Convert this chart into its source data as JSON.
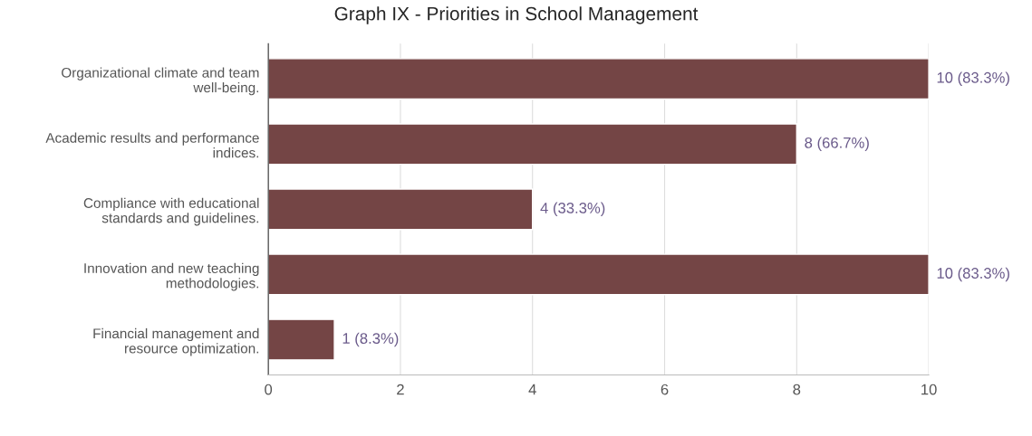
{
  "chart_data": {
    "type": "bar",
    "orientation": "horizontal",
    "title": "Graph IX - Priorities in School Management",
    "categories": [
      "Organizational climate and team\nwell-being.",
      "Academic results and performance\nindices.",
      "Compliance with educational\nstandards and guidelines.",
      "Innovation and new teaching\nmethodologies.",
      "Financial management and\nresource optimization."
    ],
    "values": [
      10,
      8,
      4,
      10,
      1
    ],
    "value_labels": [
      "10 (83.3%)",
      "8 (66.7%)",
      "4 (33.3%)",
      "10 (83.3%)",
      "1 (8.3%)"
    ],
    "color": "#744545",
    "xlim": [
      0,
      10
    ],
    "xticks": [
      0,
      2,
      4,
      6,
      8,
      10
    ],
    "grid": "x",
    "legend": false
  }
}
